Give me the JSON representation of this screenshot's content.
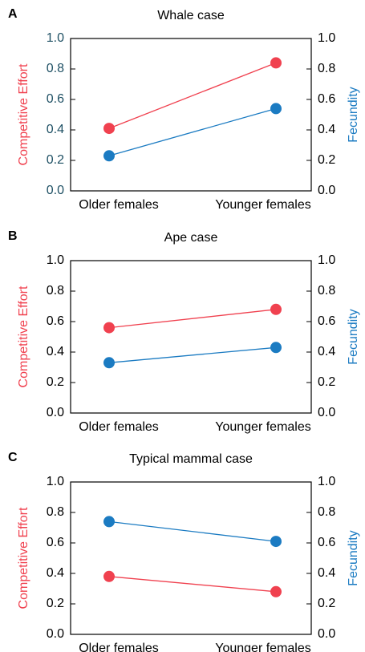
{
  "chart_data": [
    {
      "type": "line",
      "label": "A",
      "title": "Whale case",
      "categories": [
        "Older females",
        "Younger females"
      ],
      "series": [
        {
          "name": "Competitive Effort",
          "color": "#f0414f",
          "values": [
            0.41,
            0.84
          ]
        },
        {
          "name": "Fecundity",
          "color": "#1b7bc2",
          "values": [
            0.23,
            0.54
          ],
          "axis": "y2"
        }
      ],
      "ylim": [
        0,
        1
      ],
      "yticks": [
        {
          "value": 0,
          "label": "0.0"
        },
        0.2,
        0.4,
        0.6,
        0.8,
        {
          "value": 1,
          "label": "1.0"
        }
      ],
      "y2lim": [
        0,
        1
      ],
      "y2ticks": [
        {
          "value": 0,
          "label": "0.0"
        },
        0.2,
        0.4,
        0.6,
        0.8,
        {
          "value": 1,
          "label": "1.0"
        }
      ],
      "ytick_color": "#1d4f63"
    },
    {
      "type": "line",
      "label": "B",
      "title": "Ape case",
      "categories": [
        "Older females",
        "Younger females"
      ],
      "series": [
        {
          "name": "Competitive Effort",
          "color": "#f0414f",
          "values": [
            0.56,
            0.68
          ]
        },
        {
          "name": "Fecundity",
          "color": "#1b7bc2",
          "values": [
            0.33,
            0.43
          ],
          "axis": "y2"
        }
      ],
      "ylim": [
        0,
        1
      ],
      "yticks": [
        {
          "value": 0,
          "label": "0.0"
        },
        0.2,
        0.4,
        0.6,
        0.8,
        {
          "value": 1,
          "label": "1.0"
        }
      ],
      "y2lim": [
        0,
        1
      ],
      "y2ticks": [
        {
          "value": 0,
          "label": "0.0"
        },
        0.2,
        0.4,
        0.6,
        0.8,
        {
          "value": 1,
          "label": "1.0"
        }
      ],
      "ytick_color": "#000000"
    },
    {
      "type": "line",
      "label": "C",
      "title": "Typical mammal case",
      "categories": [
        "Older females",
        "Younger females"
      ],
      "series": [
        {
          "name": "Competitive Effort",
          "color": "#f0414f",
          "values": [
            0.38,
            0.28
          ]
        },
        {
          "name": "Fecundity",
          "color": "#1b7bc2",
          "values": [
            0.74,
            0.61
          ],
          "axis": "y2"
        }
      ],
      "ylim": [
        0,
        1
      ],
      "yticks": [
        {
          "value": 0,
          "label": "0.0"
        },
        0.2,
        0.4,
        0.6,
        0.8,
        {
          "value": 1,
          "label": "1.0"
        }
      ],
      "y2lim": [
        0,
        1
      ],
      "y2ticks": [
        {
          "value": 0,
          "label": "0.0"
        },
        0.2,
        0.4,
        0.6,
        0.8,
        {
          "value": 1,
          "label": "1.0"
        }
      ],
      "ytick_color": "#000000"
    }
  ]
}
